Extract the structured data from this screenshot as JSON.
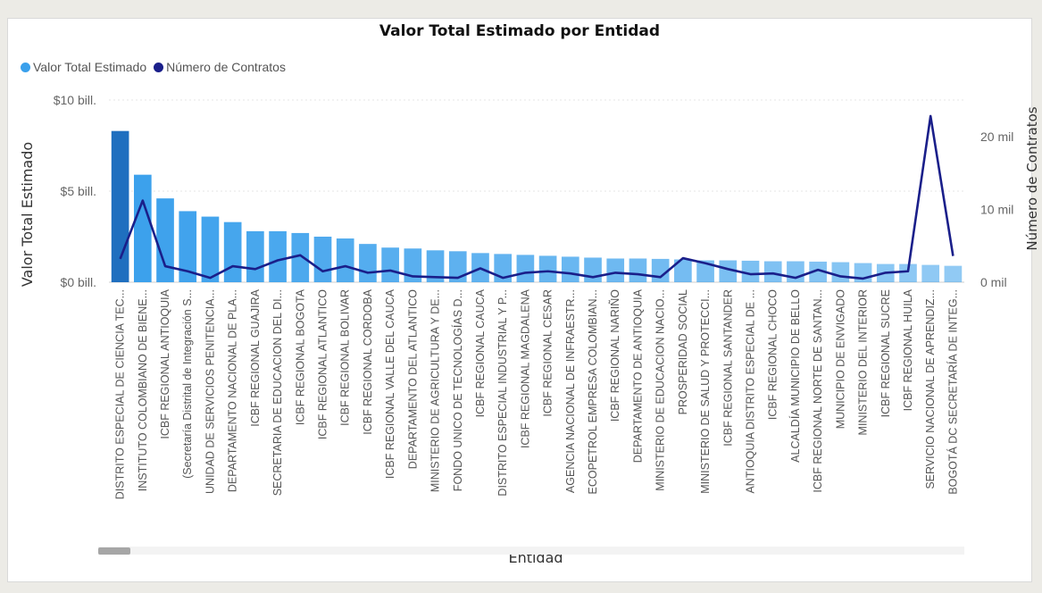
{
  "colors": {
    "bar": "#3aa0ec",
    "bar_highlight": "#1f6fbf",
    "line": "#1a1f8a",
    "legend_bar_dot": "#3aa0ec",
    "legend_line_dot": "#1a1f8a"
  },
  "chart_data": {
    "type": "bar",
    "title": "Valor Total Estimado por Entidad",
    "xlabel": "Entidad",
    "ylabel": "Valor Total Estimado",
    "y2label": "Número de Contratos",
    "legend_position": "top-left",
    "grid": true,
    "ylim": [
      0,
      10
    ],
    "y2lim": [
      0,
      25000
    ],
    "yticks": [
      "$0 bill.",
      "$5 bill.",
      "$10 bill."
    ],
    "y2ticks": [
      "0 mil",
      "10 mil",
      "20 mil"
    ],
    "categories": [
      "DISTRITO ESPECIAL DE CIENCIA TEC...",
      "INSTITUTO COLOMBIANO DE BIENE...",
      "ICBF REGIONAL ANTIOQUIA",
      "(Secretaría Distrital de Integración S...",
      "UNIDAD DE SERVICIOS PENITENCIA...",
      "DEPARTAMENTO NACIONAL DE PLA...",
      "ICBF REGIONAL GUAJIRA",
      "SECRETARIA DE EDUCACION DEL DI...",
      "ICBF REGIONAL BOGOTA",
      "ICBF REGIONAL ATLANTICO",
      "ICBF REGIONAL BOLIVAR",
      "ICBF REGIONAL CORDOBA",
      "ICBF REGIONAL VALLE DEL CAUCA",
      "DEPARTAMENTO DEL ATLANTICO",
      "MINISTERIO DE AGRICULTURA Y DE...",
      "FONDO UNICO DE TECNOLOGÍAS D...",
      "ICBF REGIONAL CAUCA",
      "DISTRITO ESPECIAL INDUSTRIAL Y P...",
      "ICBF REGIONAL MAGDALENA",
      "ICBF REGIONAL CESAR",
      "AGENCIA NACIONAL DE INFRAESTR...",
      "ECOPETROL EMPRESA COLOMBIAN...",
      "ICBF REGIONAL NARIÑO",
      "DEPARTAMENTO DE ANTIOQUIA",
      "MINISTERIO DE EDUCACION NACIO...",
      "PROSPERIDAD SOCIAL",
      "MINISTERIO DE SALUD Y PROTECCI...",
      "ICBF REGIONAL SANTANDER",
      "ANTIOQUIA DISTRITO ESPECIAL DE ...",
      "ICBF REGIONAL CHOCO",
      "ALCALDÍA MUNICIPIO DE BELLO",
      "ICBF REGIONAL NORTE DE SANTAN...",
      "MUNICIPIO DE ENVIGADO",
      "MINISTERIO DEL INTERIOR",
      "ICBF REGIONAL SUCRE",
      "ICBF REGIONAL HUILA",
      "SERVICIO NACIONAL DE APRENDIZ...",
      "BOGOTÁ DC SECRETARÍA DE INTEG..."
    ],
    "series": [
      {
        "name": "Valor Total Estimado",
        "axis": "left",
        "values": [
          8.3,
          5.9,
          4.6,
          3.9,
          3.6,
          3.3,
          2.8,
          2.8,
          2.7,
          2.5,
          2.4,
          2.1,
          1.9,
          1.85,
          1.75,
          1.7,
          1.6,
          1.55,
          1.5,
          1.45,
          1.4,
          1.35,
          1.3,
          1.3,
          1.28,
          1.25,
          1.2,
          1.2,
          1.18,
          1.15,
          1.15,
          1.13,
          1.1,
          1.05,
          1.0,
          1.0,
          0.95,
          0.9
        ]
      },
      {
        "name": "Número de Contratos",
        "axis": "right",
        "values": [
          3200,
          11200,
          2200,
          1500,
          600,
          2200,
          1800,
          3000,
          3700,
          1500,
          2200,
          1300,
          1600,
          800,
          700,
          600,
          1900,
          600,
          1300,
          1500,
          1200,
          700,
          1300,
          1100,
          700,
          3300,
          2600,
          1800,
          1100,
          1200,
          600,
          1700,
          800,
          500,
          1300,
          1500,
          22800,
          3600
        ]
      }
    ]
  },
  "legend": {
    "bar_label": "Valor Total Estimado",
    "line_label": "Número de Contratos"
  }
}
